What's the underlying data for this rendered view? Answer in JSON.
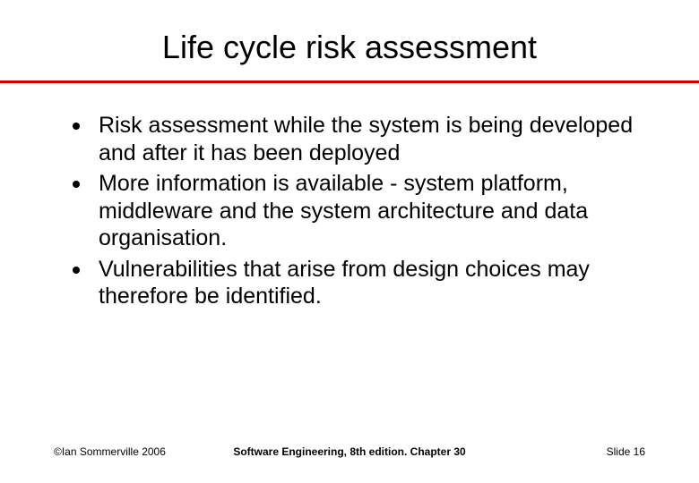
{
  "slide": {
    "title": "Life cycle risk assessment",
    "title_fontsize": 36,
    "title_color": "#000000",
    "underline_color": "#cc0000",
    "underline_height": 3,
    "background_color": "#ffffff",
    "bullets": [
      "Risk assessment while the system is being developed and after it has been deployed",
      "More information is available - system platform, middleware and the system architecture and data organisation.",
      "Vulnerabilities that arise from design choices may therefore be identified."
    ],
    "bullet_fontsize": 25,
    "bullet_color": "#000000",
    "bullet_marker_color": "#000000",
    "bullet_marker_size": 8
  },
  "footer": {
    "left": "©Ian Sommerville 2006",
    "center": "Software Engineering, 8th edition. Chapter 30",
    "right": "Slide 16",
    "fontsize": 12,
    "color": "#000000"
  }
}
